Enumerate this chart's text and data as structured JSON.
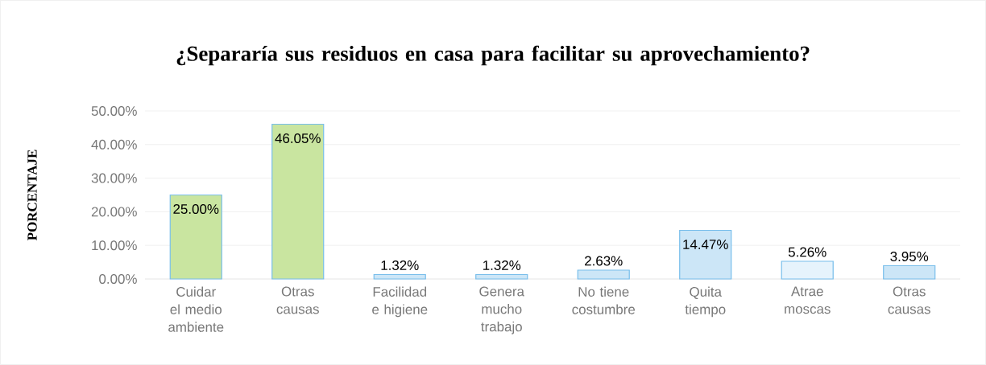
{
  "chart_data": {
    "type": "bar",
    "title": "¿Separaría sus residuos en casa para facilitar su aprovechamiento?",
    "ylabel": "PORCENTAJE",
    "categories": [
      "Cuidar el medio ambiente",
      "Otras causas",
      "Facilidad e higiene",
      "Genera mucho trabajo",
      "No tiene costumbre",
      "Quita tiempo",
      "Atrae moscas",
      "Otras causas"
    ],
    "values": [
      25.0,
      46.05,
      1.32,
      1.32,
      2.63,
      14.47,
      5.26,
      3.95
    ],
    "value_labels": [
      "25.00%",
      "46.05%",
      "1.32%",
      "1.32%",
      "2.63%",
      "14.47%",
      "5.26%",
      "3.95%"
    ],
    "colors": [
      "#c9e5a0",
      "#c9e5a0",
      "#cce6f7",
      "#cce6f7",
      "#cce6f7",
      "#cce6f7",
      "#e6f3fc",
      "#cce6f7"
    ],
    "ylim": [
      0,
      50
    ],
    "yticks": [
      {
        "value": 0,
        "label": "0.00%"
      },
      {
        "value": 10,
        "label": "10.00%"
      },
      {
        "value": 20,
        "label": "20.00%"
      },
      {
        "value": 30,
        "label": "30.00%"
      },
      {
        "value": 40,
        "label": "40.00%"
      },
      {
        "value": 50,
        "label": "50.00%"
      }
    ],
    "grid": "y"
  }
}
